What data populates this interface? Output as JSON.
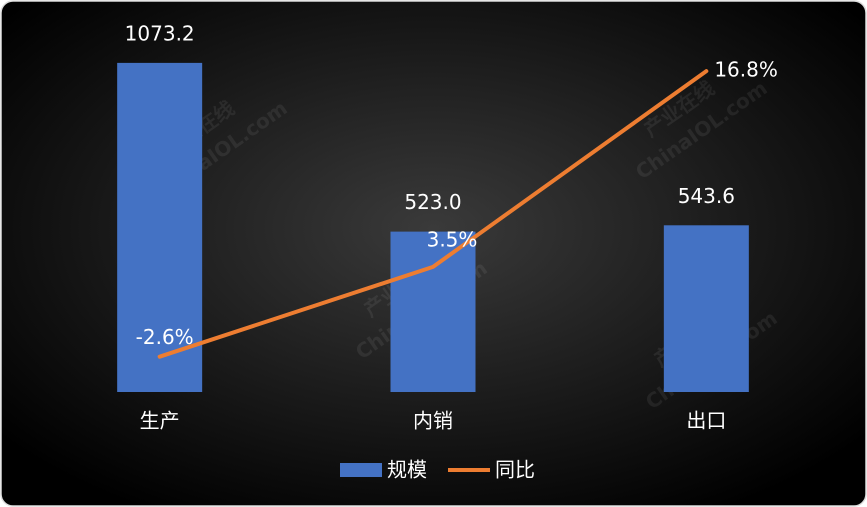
{
  "chart_data": {
    "type": "bar-line",
    "categories": [
      "生产",
      "内销",
      "出口"
    ],
    "series": [
      {
        "name": "规模",
        "type": "bar",
        "color": "#4472c4",
        "values": [
          1073.2,
          523.0,
          543.6
        ],
        "value_labels": [
          "1073.2",
          "523.0",
          "543.6"
        ]
      },
      {
        "name": "同比",
        "type": "line",
        "color": "#ed7d31",
        "axis": "y2",
        "values": [
          -2.6,
          3.5,
          16.8
        ],
        "value_labels": [
          "-2.6%",
          "3.5%",
          "16.8%"
        ]
      }
    ],
    "ylim": [
      0,
      1200
    ],
    "y2lim": [
      -5,
      20
    ],
    "legend": "bottom",
    "watermark": [
      "产业在线",
      "ChinaIOL.com"
    ]
  }
}
